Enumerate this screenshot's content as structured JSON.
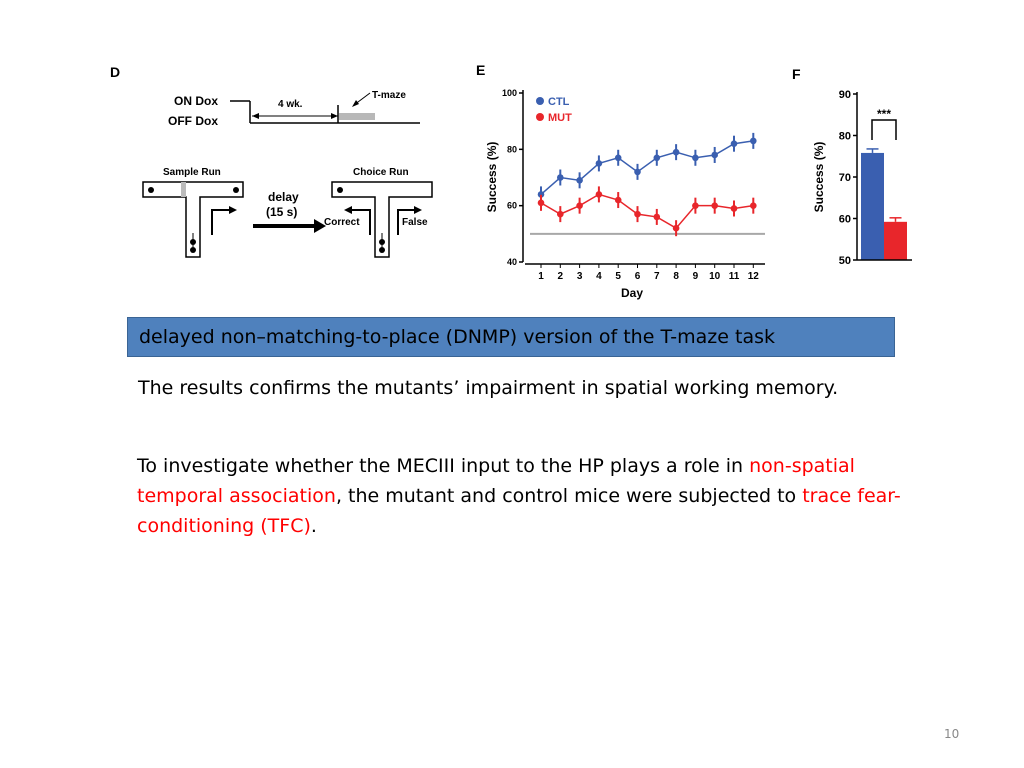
{
  "figure": {
    "panel_d": {
      "letter": "D",
      "on_dox": "ON Dox",
      "off_dox": "OFF Dox",
      "duration": "4 wk.",
      "t_maze": "T-maze",
      "sample_run": "Sample Run",
      "choice_run": "Choice Run",
      "delay": "delay",
      "delay_time": "(15 s)",
      "correct": "Correct",
      "false": "False"
    },
    "panel_e": {
      "letter": "E",
      "ylabel": "Success (%)",
      "xlabel": "Day",
      "legend": [
        "CTL",
        "MUT"
      ]
    },
    "panel_f": {
      "letter": "F",
      "ylabel": "Success (%)",
      "significance": "***"
    }
  },
  "chart_data": [
    {
      "type": "line",
      "xlabel": "Day",
      "ylabel": "Success (%)",
      "ylim": [
        40,
        100
      ],
      "yticks": [
        40,
        60,
        80,
        100
      ],
      "x": [
        1,
        2,
        3,
        4,
        5,
        6,
        7,
        8,
        9,
        10,
        11,
        12
      ],
      "chance_level": 50,
      "series": [
        {
          "name": "CTL",
          "color": "#3a5fb0",
          "values": [
            64,
            70,
            69,
            75,
            77,
            72,
            77,
            79,
            77,
            78,
            82,
            83
          ]
        },
        {
          "name": "MUT",
          "color": "#e8262b",
          "values": [
            61,
            57,
            60,
            64,
            62,
            57,
            56,
            52,
            60,
            60,
            59,
            60
          ]
        }
      ],
      "legend_position": "top-left"
    },
    {
      "type": "bar",
      "ylabel": "Success (%)",
      "ylim": [
        50,
        90
      ],
      "yticks": [
        50,
        60,
        70,
        80,
        90
      ],
      "categories": [
        "CTL",
        "MUT"
      ],
      "values": [
        75.8,
        59.2
      ],
      "colors": [
        "#3a5fb0",
        "#e8262b"
      ]
    }
  ],
  "caption": "delayed non–matching-to-place (DNMP) version of the T-maze task",
  "result_text": "The results confirms the mutants’ impairment in spatial working memory.",
  "paragraph": {
    "part1": "To investigate whether the MECIII input to the HP plays a role in ",
    "red1": "non-spatial temporal association",
    "part2": ", the mutant and control mice were subjected to ",
    "red2": "trace fear-conditioning (TFC)",
    "part3": "."
  },
  "slide_number": "10"
}
